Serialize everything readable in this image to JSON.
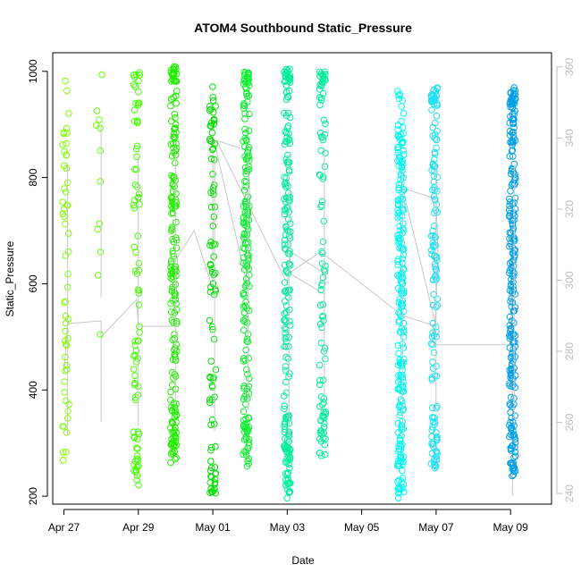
{
  "chart_data": {
    "type": "scatter",
    "title": "ATOM4 Southbound Static_Pressure",
    "xlabel": "Date",
    "ylabel": "Static_Pressure",
    "x_ticks": [
      "Apr 27",
      "Apr 29",
      "May 01",
      "May 03",
      "May 05",
      "May 07",
      "May 09"
    ],
    "x_tick_days": [
      0,
      2,
      4,
      6,
      8,
      10,
      12
    ],
    "xlim_days": [
      -0.3,
      13.1
    ],
    "ylim": [
      185,
      1035
    ],
    "y_ticks": [
      200,
      400,
      600,
      800,
      1000
    ],
    "y2_ticks": [
      240,
      260,
      280,
      300,
      320,
      340,
      360
    ],
    "y2lim": [
      237,
      364
    ],
    "grid": false,
    "marker": "open-circle",
    "series": [
      {
        "day": 0.05,
        "color": "#7fff00",
        "ymin": 195,
        "ymax": 985,
        "n": 55,
        "densify": []
      },
      {
        "day": 0.95,
        "color": "#66ff00",
        "ymin": 500,
        "ymax": 995,
        "n": 12,
        "densify": []
      },
      {
        "day": 1.95,
        "color": "#44ff00",
        "ymin": 215,
        "ymax": 995,
        "n": 60,
        "densify": [
          [
            220,
            300
          ],
          [
            900,
            1000
          ]
        ]
      },
      {
        "day": 2.95,
        "color": "#22ee00",
        "ymin": 260,
        "ymax": 1010,
        "n": 150,
        "densify": [
          [
            280,
            360
          ],
          [
            560,
            820
          ],
          [
            980,
            1010
          ]
        ]
      },
      {
        "day": 4.0,
        "color": "#00e000",
        "ymin": 205,
        "ymax": 995,
        "n": 70,
        "densify": [
          [
            205,
            260
          ],
          [
            850,
            950
          ]
        ]
      },
      {
        "day": 4.9,
        "color": "#11ee33",
        "ymin": 250,
        "ymax": 1000,
        "n": 150,
        "densify": [
          [
            320,
            350
          ],
          [
            600,
            900
          ],
          [
            980,
            1000
          ]
        ]
      },
      {
        "day": 6.0,
        "color": "#00ee99",
        "ymin": 195,
        "ymax": 1005,
        "n": 160,
        "densify": [
          [
            250,
            300
          ],
          [
            600,
            700
          ],
          [
            980,
            1005
          ]
        ]
      },
      {
        "day": 6.95,
        "color": "#00ee99",
        "ymin": 275,
        "ymax": 1000,
        "n": 70,
        "densify": [
          [
            300,
            360
          ],
          [
            980,
            1000
          ]
        ]
      },
      {
        "day": 9.05,
        "color": "#00f7f0",
        "ymin": 195,
        "ymax": 965,
        "n": 190,
        "densify": [
          [
            200,
            320
          ],
          [
            400,
            460
          ],
          [
            600,
            780
          ]
        ]
      },
      {
        "day": 9.95,
        "color": "#22e0f0",
        "ymin": 250,
        "ymax": 970,
        "n": 110,
        "densify": [
          [
            250,
            300
          ],
          [
            600,
            700
          ],
          [
            940,
            970
          ]
        ]
      },
      {
        "day": 12.05,
        "color": "#00a0e8",
        "ymin": 235,
        "ymax": 970,
        "n": 190,
        "densify": [
          [
            235,
            330
          ],
          [
            400,
            520
          ],
          [
            600,
            700
          ],
          [
            940,
            970
          ]
        ]
      }
    ],
    "line_series": {
      "color": "#c8c8c8",
      "points": [
        [
          0.0,
          430
        ],
        [
          0.1,
          525
        ],
        [
          1.0,
          530
        ],
        [
          1.0,
          340
        ],
        [
          1.0,
          500
        ],
        [
          1.95,
          570
        ],
        [
          2.0,
          520
        ],
        [
          3.0,
          520
        ],
        [
          3.05,
          650
        ],
        [
          3.5,
          700
        ],
        [
          4.0,
          590
        ],
        [
          4.0,
          880
        ],
        [
          4.95,
          590
        ],
        [
          5.0,
          750
        ],
        [
          4.95,
          850
        ],
        [
          4.1,
          870
        ],
        [
          6.0,
          600
        ],
        [
          6.1,
          660
        ],
        [
          7.0,
          620
        ],
        [
          7.0,
          580
        ],
        [
          6.05,
          620
        ],
        [
          6.9,
          660
        ],
        [
          9.1,
          540
        ],
        [
          10.0,
          520
        ],
        [
          9.1,
          780
        ],
        [
          10.0,
          760
        ],
        [
          10.05,
          650
        ],
        [
          9.95,
          485
        ],
        [
          12.0,
          485
        ],
        [
          12.05,
          700
        ],
        [
          12.05,
          750
        ],
        [
          12.05,
          200
        ]
      ]
    }
  }
}
